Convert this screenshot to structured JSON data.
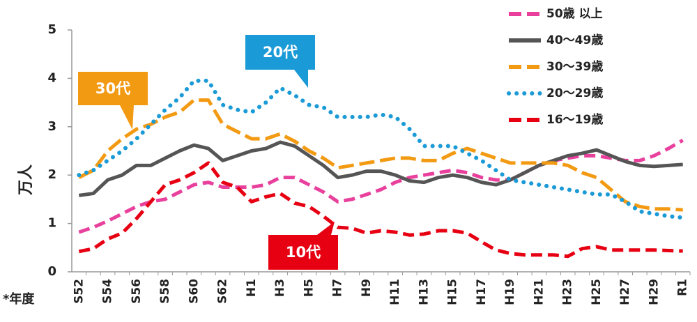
{
  "chart_data": {
    "type": "line",
    "y_label": "万人",
    "x_label": "*年度",
    "categories": [
      "S52",
      null,
      "S54",
      null,
      "S56",
      null,
      "S58",
      null,
      "S60",
      null,
      "S62",
      null,
      "H1",
      null,
      "H3",
      null,
      "H5",
      null,
      "H7",
      null,
      "H9",
      null,
      "H11",
      null,
      "H13",
      null,
      "H15",
      null,
      "H17",
      null,
      "H19",
      null,
      "H21",
      null,
      "H23",
      null,
      "H25",
      null,
      "H27",
      null,
      "H29",
      null,
      "R1"
    ],
    "ylim": [
      0,
      5
    ],
    "yticks": [
      0,
      1,
      2,
      3,
      4,
      5
    ],
    "legend": "upper right",
    "series": [
      {
        "name": "50歳 以上",
        "color": "#e8409c",
        "linestyle": "dashed",
        "values": [
          0.82,
          0.92,
          1.05,
          1.2,
          1.35,
          1.45,
          1.5,
          1.65,
          1.8,
          1.85,
          1.75,
          1.75,
          1.75,
          1.8,
          1.95,
          1.95,
          1.8,
          1.65,
          1.45,
          1.5,
          1.6,
          1.7,
          1.85,
          1.95,
          2.0,
          2.05,
          2.1,
          2.05,
          1.95,
          1.9,
          1.9,
          2.05,
          2.2,
          2.3,
          2.35,
          2.4,
          2.4,
          2.35,
          2.3,
          2.3,
          2.4,
          2.55,
          2.72
        ]
      },
      {
        "name": "40～49歳",
        "color": "#555555",
        "linestyle": "solid",
        "values": [
          1.58,
          1.62,
          1.9,
          2.0,
          2.2,
          2.2,
          2.35,
          2.5,
          2.62,
          2.55,
          2.3,
          2.4,
          2.5,
          2.55,
          2.68,
          2.6,
          2.4,
          2.2,
          1.95,
          2.0,
          2.08,
          2.08,
          2.0,
          1.88,
          1.85,
          1.95,
          2.0,
          1.95,
          1.85,
          1.8,
          1.9,
          2.05,
          2.2,
          2.3,
          2.4,
          2.45,
          2.52,
          2.4,
          2.28,
          2.2,
          2.18,
          2.2,
          2.22
        ]
      },
      {
        "name": "30～39歳",
        "color": "#f39a13",
        "linestyle": "longdash",
        "values": [
          1.95,
          2.1,
          2.5,
          2.75,
          2.95,
          3.05,
          3.2,
          3.3,
          3.55,
          3.55,
          3.05,
          2.9,
          2.75,
          2.75,
          2.85,
          2.7,
          2.5,
          2.35,
          2.15,
          2.2,
          2.25,
          2.3,
          2.35,
          2.35,
          2.3,
          2.3,
          2.45,
          2.55,
          2.45,
          2.35,
          2.25,
          2.25,
          2.25,
          2.25,
          2.2,
          2.05,
          1.95,
          1.7,
          1.45,
          1.35,
          1.3,
          1.3,
          1.28
        ]
      },
      {
        "name": "20～29歳",
        "color": "#1a9ad6",
        "linestyle": "dotted",
        "values": [
          2.0,
          2.1,
          2.3,
          2.5,
          2.75,
          3.05,
          3.35,
          3.6,
          3.95,
          3.95,
          3.45,
          3.35,
          3.3,
          3.5,
          3.8,
          3.65,
          3.45,
          3.4,
          3.2,
          3.2,
          3.2,
          3.25,
          3.2,
          2.95,
          2.6,
          2.6,
          2.6,
          2.45,
          2.3,
          2.1,
          1.9,
          1.85,
          1.8,
          1.75,
          1.7,
          1.65,
          1.6,
          1.6,
          1.45,
          1.25,
          1.2,
          1.15,
          1.12
        ]
      },
      {
        "name": "16～19歳",
        "color": "#e60012",
        "linestyle": "dashed",
        "values": [
          0.42,
          0.48,
          0.68,
          0.8,
          1.1,
          1.45,
          1.8,
          1.9,
          2.05,
          2.25,
          1.85,
          1.75,
          1.45,
          1.55,
          1.62,
          1.42,
          1.35,
          1.15,
          0.92,
          0.9,
          0.8,
          0.85,
          0.82,
          0.76,
          0.78,
          0.85,
          0.85,
          0.8,
          0.62,
          0.45,
          0.38,
          0.35,
          0.35,
          0.35,
          0.32,
          0.48,
          0.52,
          0.45,
          0.45,
          0.45,
          0.45,
          0.44,
          0.43
        ]
      }
    ],
    "annotations": [
      {
        "text": "30代",
        "color": "#f39a13"
      },
      {
        "text": "20代",
        "color": "#1a9ad6"
      },
      {
        "text": "10代",
        "color": "#e60012"
      }
    ]
  }
}
